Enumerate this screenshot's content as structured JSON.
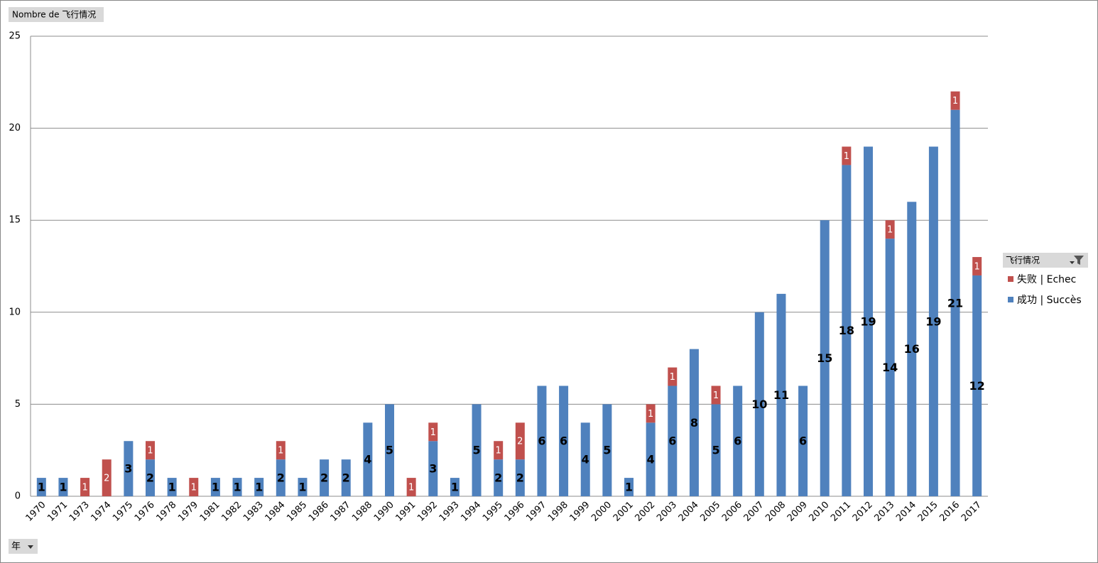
{
  "ui": {
    "field_button": "Nombre de 飞行情况",
    "axis_field_button": "年",
    "legend_field_button": "飞行情况"
  },
  "chart_data": {
    "type": "stacked_bar",
    "categories": [
      "1970",
      "1971",
      "1973",
      "1974",
      "1975",
      "1976",
      "1978",
      "1979",
      "1981",
      "1982",
      "1983",
      "1984",
      "1985",
      "1986",
      "1987",
      "1988",
      "1990",
      "1991",
      "1992",
      "1993",
      "1994",
      "1995",
      "1996",
      "1997",
      "1998",
      "1999",
      "2000",
      "2001",
      "2002",
      "2003",
      "2004",
      "2005",
      "2006",
      "2007",
      "2008",
      "2009",
      "2010",
      "2011",
      "2012",
      "2013",
      "2014",
      "2015",
      "2016",
      "2017"
    ],
    "series": [
      {
        "name": "失败 | Echec",
        "color": "#c0504d",
        "label_color": "#ffffff",
        "values": [
          null,
          null,
          1,
          2,
          null,
          1,
          null,
          1,
          null,
          null,
          null,
          1,
          null,
          null,
          null,
          null,
          null,
          1,
          1,
          null,
          null,
          1,
          2,
          null,
          null,
          null,
          null,
          null,
          1,
          1,
          null,
          1,
          null,
          null,
          null,
          null,
          null,
          1,
          null,
          1,
          null,
          null,
          1,
          1
        ]
      },
      {
        "name": "成功 | Succès",
        "color": "#4f81bd",
        "label_color": "#000000",
        "values": [
          1,
          1,
          null,
          null,
          3,
          2,
          1,
          null,
          1,
          1,
          1,
          2,
          1,
          2,
          2,
          4,
          5,
          null,
          3,
          1,
          5,
          2,
          2,
          6,
          6,
          4,
          5,
          1,
          4,
          6,
          8,
          5,
          6,
          10,
          11,
          6,
          15,
          18,
          19,
          14,
          16,
          19,
          21,
          12
        ]
      }
    ],
    "stack_order": "reverse",
    "ylim": [
      0,
      25
    ],
    "yticks": [
      0,
      5,
      10,
      15,
      20,
      25
    ],
    "grid": true,
    "legend": "right"
  }
}
